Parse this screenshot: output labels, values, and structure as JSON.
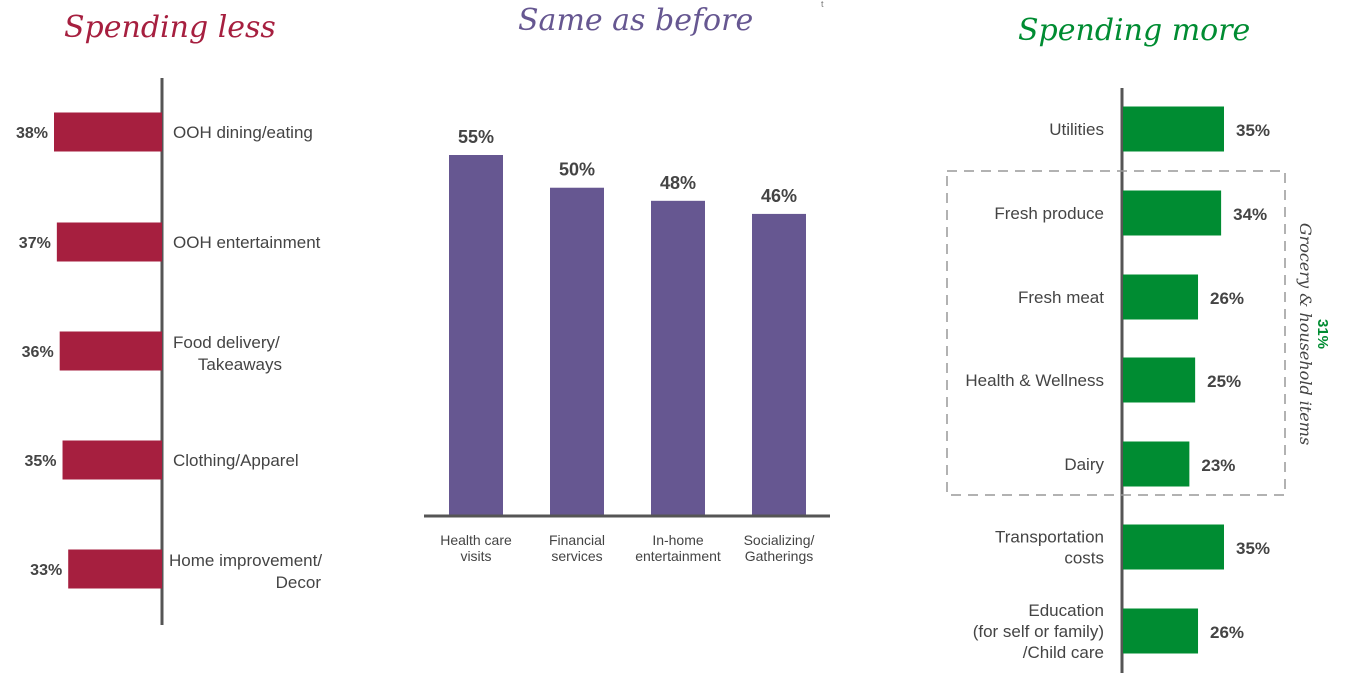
{
  "colors": {
    "less": "#a61f3f",
    "same": "#665791",
    "more": "#008c32",
    "text": "#444444",
    "axis": "#555555"
  },
  "titles": {
    "less": "Spending less",
    "same": "Same as before",
    "more": "Spending more",
    "stray_mark": "t"
  },
  "chart_data": [
    {
      "type": "bar",
      "orientation": "horizontal",
      "title": "Spending less",
      "categories": [
        [
          "OOH dining/eating"
        ],
        [
          "OOH entertainment"
        ],
        [
          "Food delivery/",
          "Takeaways"
        ],
        [
          "Clothing/Apparel"
        ],
        [
          "Home improvement/",
          "Decor"
        ]
      ],
      "values": [
        38,
        37,
        36,
        35,
        33
      ],
      "value_labels": [
        "38%",
        "37%",
        "36%",
        "35%",
        "33%"
      ],
      "xlim": [
        0,
        40
      ]
    },
    {
      "type": "bar",
      "orientation": "vertical",
      "title": "Same as before",
      "categories": [
        [
          "Health care",
          "visits"
        ],
        [
          "Financial",
          "services"
        ],
        [
          "In-home",
          "entertainment"
        ],
        [
          "Socializing/",
          "Gatherings"
        ]
      ],
      "values": [
        55,
        50,
        48,
        46
      ],
      "value_labels": [
        "55%",
        "50%",
        "48%",
        "46%"
      ],
      "ylim": [
        0,
        60
      ]
    },
    {
      "type": "bar",
      "orientation": "horizontal",
      "title": "Spending more",
      "categories": [
        [
          "Utilities"
        ],
        [
          "Fresh produce"
        ],
        [
          "Fresh meat"
        ],
        [
          "Health & Wellness"
        ],
        [
          "Dairy"
        ],
        [
          "Transportation",
          "costs"
        ],
        [
          "Education",
          "(for self or family)",
          "/Child care"
        ]
      ],
      "values": [
        35,
        34,
        26,
        25,
        23,
        35,
        26
      ],
      "value_labels": [
        "35%",
        "34%",
        "26%",
        "25%",
        "23%",
        "35%",
        "26%"
      ],
      "xlim": [
        0,
        40
      ],
      "group": {
        "label": "Grocery & household items",
        "value_label": "31%",
        "members": [
          1,
          2,
          3,
          4
        ]
      }
    }
  ]
}
